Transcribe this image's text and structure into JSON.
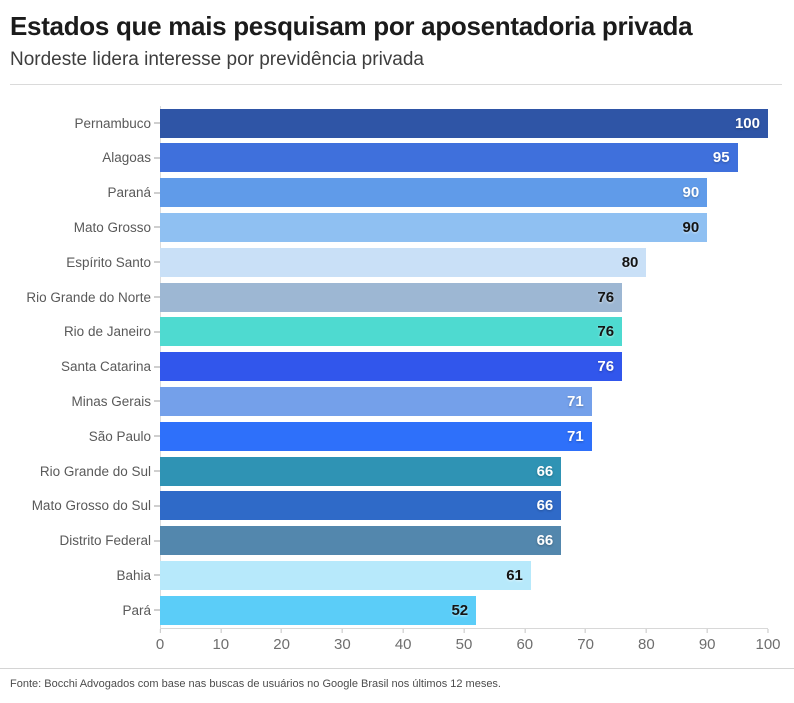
{
  "header": {
    "title": "Estados que mais pesquisam por aposentadoria privada",
    "subtitle": "Nordeste lidera interesse por previdência privada"
  },
  "chart_data": {
    "type": "bar",
    "orientation": "horizontal",
    "title": "Estados que mais pesquisam por aposentadoria privada",
    "subtitle": "Nordeste lidera interesse por previdência privada",
    "categories": [
      "Pernambuco",
      "Alagoas",
      "Paraná",
      "Mato Grosso",
      "Espírito Santo",
      "Rio Grande do Norte",
      "Rio de Janeiro",
      "Santa Catarina",
      "Minas Gerais",
      "São Paulo",
      "Rio Grande do Sul",
      "Mato Grosso do Sul",
      "Distrito Federal",
      "Bahia",
      "Pará"
    ],
    "values": [
      100,
      95,
      90,
      90,
      80,
      76,
      76,
      76,
      71,
      71,
      66,
      66,
      66,
      61,
      52
    ],
    "colors": [
      "#2F55A6",
      "#3F70DC",
      "#609BE9",
      "#8FC0F2",
      "#C9E0F7",
      "#9DB7D3",
      "#4EDAD0",
      "#3156EC",
      "#74A0EA",
      "#2E70FA",
      "#2F93B4",
      "#2F6AC8",
      "#5387AD",
      "#B7E9FB",
      "#5BCDF8"
    ],
    "value_label_styles": [
      "light",
      "light",
      "light",
      "dark",
      "dark",
      "dark",
      "dark",
      "light",
      "light",
      "light",
      "light",
      "light",
      "light",
      "dark",
      "dark"
    ],
    "xlim": [
      0,
      100
    ],
    "x_ticks": [
      0,
      10,
      20,
      30,
      40,
      50,
      60,
      70,
      80,
      90,
      100
    ],
    "grid": false,
    "legend": "none",
    "value_labels": "inside-end"
  },
  "footer": {
    "source": "Fonte: Bocchi Advogados com base nas buscas de usuários no Google Brasil nos últimos 12 meses."
  }
}
